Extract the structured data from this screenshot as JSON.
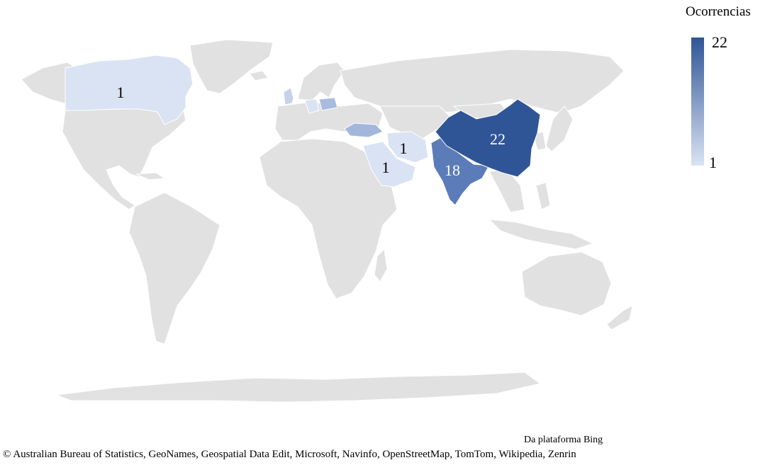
{
  "legend": {
    "title": "Ocorrencias",
    "max_label": "22",
    "min_label": "1",
    "color_max": "#2f5597",
    "color_min": "#dae3f3"
  },
  "regions": {
    "canada": {
      "name": "Canada",
      "value": 1,
      "label": "1",
      "fill": "#dae3f3",
      "label_color": "#000000"
    },
    "uk": {
      "name": "United Kingdom",
      "value": 1,
      "fill": "#c5d2ea"
    },
    "poland": {
      "name": "Poland",
      "value": 2,
      "fill": "#a9bbde"
    },
    "turkey": {
      "name": "Turkey",
      "value": 3,
      "fill": "#a3b6dc"
    },
    "germany": {
      "name": "Germany",
      "value": 1,
      "fill": "#dae3f3"
    },
    "iran": {
      "name": "Iran",
      "value": 1,
      "label": "1",
      "fill": "#dae3f3",
      "label_color": "#000000"
    },
    "saudi_arabia": {
      "name": "Saudi Arabia",
      "value": 1,
      "label": "1",
      "fill": "#dae3f3",
      "label_color": "#000000"
    },
    "india": {
      "name": "India",
      "value": 18,
      "label": "18",
      "fill": "#5b7cb8",
      "label_color": "#ffffff"
    },
    "china": {
      "name": "China",
      "value": 22,
      "label": "22",
      "fill": "#2f5597",
      "label_color": "#ffffff"
    }
  },
  "attribution": {
    "source": "Da plataforma Bing",
    "copyright": "© Australian Bureau of Statistics, GeoNames, Geospatial Data Edit, Microsoft, Navinfo, OpenStreetMap, TomTom, Wikipedia, Zenrin"
  }
}
